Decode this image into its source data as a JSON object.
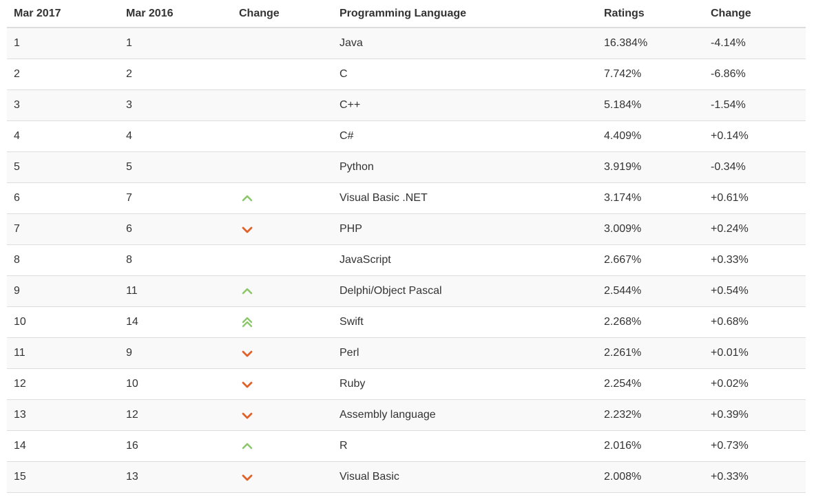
{
  "headers": [
    "Mar 2017",
    "Mar 2016",
    "Change",
    "Programming Language",
    "Ratings",
    "Change"
  ],
  "colors": {
    "up": "#8cc66a",
    "down": "#e0602a",
    "stripe": "#f9f9f9",
    "border": "#dddddd"
  },
  "rows": [
    {
      "rank2017": "1",
      "rank2016": "1",
      "change": "none",
      "language": "Java",
      "rating": "16.384%",
      "delta": "-4.14%"
    },
    {
      "rank2017": "2",
      "rank2016": "2",
      "change": "none",
      "language": "C",
      "rating": "7.742%",
      "delta": "-6.86%"
    },
    {
      "rank2017": "3",
      "rank2016": "3",
      "change": "none",
      "language": "C++",
      "rating": "5.184%",
      "delta": "-1.54%"
    },
    {
      "rank2017": "4",
      "rank2016": "4",
      "change": "none",
      "language": "C#",
      "rating": "4.409%",
      "delta": "+0.14%"
    },
    {
      "rank2017": "5",
      "rank2016": "5",
      "change": "none",
      "language": "Python",
      "rating": "3.919%",
      "delta": "-0.34%"
    },
    {
      "rank2017": "6",
      "rank2016": "7",
      "change": "up",
      "language": "Visual Basic .NET",
      "rating": "3.174%",
      "delta": "+0.61%"
    },
    {
      "rank2017": "7",
      "rank2016": "6",
      "change": "down",
      "language": "PHP",
      "rating": "3.009%",
      "delta": "+0.24%"
    },
    {
      "rank2017": "8",
      "rank2016": "8",
      "change": "none",
      "language": "JavaScript",
      "rating": "2.667%",
      "delta": "+0.33%"
    },
    {
      "rank2017": "9",
      "rank2016": "11",
      "change": "up",
      "language": "Delphi/Object Pascal",
      "rating": "2.544%",
      "delta": "+0.54%"
    },
    {
      "rank2017": "10",
      "rank2016": "14",
      "change": "up-double",
      "language": "Swift",
      "rating": "2.268%",
      "delta": "+0.68%"
    },
    {
      "rank2017": "11",
      "rank2016": "9",
      "change": "down",
      "language": "Perl",
      "rating": "2.261%",
      "delta": "+0.01%"
    },
    {
      "rank2017": "12",
      "rank2016": "10",
      "change": "down",
      "language": "Ruby",
      "rating": "2.254%",
      "delta": "+0.02%"
    },
    {
      "rank2017": "13",
      "rank2016": "12",
      "change": "down",
      "language": "Assembly language",
      "rating": "2.232%",
      "delta": "+0.39%"
    },
    {
      "rank2017": "14",
      "rank2016": "16",
      "change": "up",
      "language": "R",
      "rating": "2.016%",
      "delta": "+0.73%"
    },
    {
      "rank2017": "15",
      "rank2016": "13",
      "change": "down",
      "language": "Visual Basic",
      "rating": "2.008%",
      "delta": "+0.33%"
    }
  ]
}
